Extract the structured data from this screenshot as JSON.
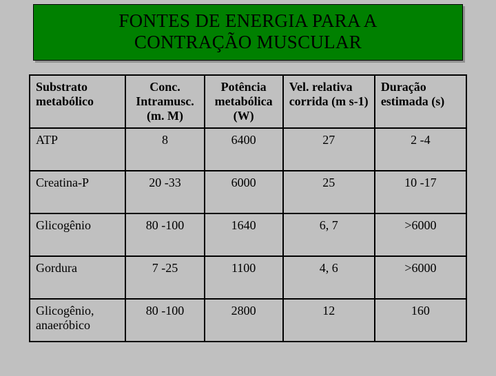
{
  "title": {
    "line1": "FONTES DE ENERGIA PARA A",
    "line2": "CONTRAÇÃO MUSCULAR"
  },
  "table": {
    "headers": {
      "c1": "Substrato metabólico",
      "c2": "Conc. Intramusc. (m. M)",
      "c3": "Potência metabólica (W)",
      "c4": "Vel. relativa corrida (m s-1)",
      "c5": "Duração estimada (s)"
    },
    "rows": [
      {
        "c1": "ATP",
        "c2": "8",
        "c3": "6400",
        "c4": "27",
        "c5": "2 -4"
      },
      {
        "c1": "Creatina-P",
        "c2": "20 -33",
        "c3": "6000",
        "c4": "25",
        "c5": "10 -17"
      },
      {
        "c1": "Glicogênio",
        "c2": "80 -100",
        "c3": "1640",
        "c4": "6, 7",
        "c5": ">6000"
      },
      {
        "c1": "Gordura",
        "c2": "7 -25",
        "c3": "1100",
        "c4": "4, 6",
        "c5": ">6000"
      },
      {
        "c1": "Glicogênio, anaeróbico",
        "c2": "80 -100",
        "c3": "2800",
        "c4": "12",
        "c5": "160"
      }
    ]
  },
  "colors": {
    "page_bg": "#c0c0c0",
    "title_bg": "#008000",
    "border": "#000000",
    "text": "#000000"
  }
}
